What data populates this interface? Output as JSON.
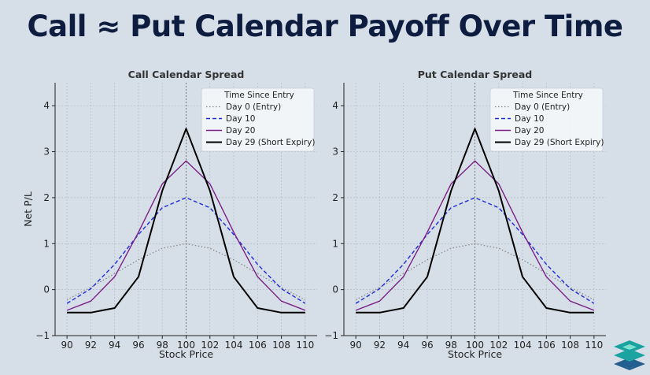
{
  "page": {
    "title": "Call ≈ Put Calendar Payoff Over Time"
  },
  "logo": {
    "icon": "layered-stack-logo-icon",
    "colors": [
      "#1aa3a0",
      "#7fe0d2",
      "#245f8f"
    ]
  },
  "chart_data": [
    {
      "type": "line",
      "title": "Call Calendar Spread",
      "xlabel": "Stock Price",
      "ylabel": "Net P/L",
      "xlim": [
        89,
        111
      ],
      "ylim": [
        -1,
        4.5
      ],
      "xticks": [
        90,
        92,
        94,
        96,
        98,
        100,
        102,
        104,
        106,
        108,
        110
      ],
      "yticks": [
        -1,
        0,
        1,
        2,
        3,
        4
      ],
      "grid": true,
      "vline_x": 100,
      "legend": {
        "title": "Time Since Entry",
        "placement": "top-right"
      },
      "x": [
        90,
        92,
        94,
        96,
        98,
        100,
        102,
        104,
        106,
        108,
        110
      ],
      "series": [
        {
          "name": "Day 0 (Entry)",
          "color": "#888888",
          "style": "dotted",
          "values": [
            -0.22,
            0.05,
            0.35,
            0.65,
            0.9,
            1.0,
            0.9,
            0.65,
            0.35,
            0.05,
            -0.22
          ]
        },
        {
          "name": "Day 10",
          "color": "#1f2bd6",
          "style": "dashed",
          "values": [
            -0.3,
            0.02,
            0.55,
            1.2,
            1.78,
            2.0,
            1.78,
            1.2,
            0.55,
            0.02,
            -0.3
          ]
        },
        {
          "name": "Day 20",
          "color": "#7b1f86",
          "style": "solid",
          "values": [
            -0.45,
            -0.25,
            0.28,
            1.25,
            2.3,
            2.8,
            2.3,
            1.25,
            0.28,
            -0.25,
            -0.45
          ]
        },
        {
          "name": "Day 29 (Short Expiry)",
          "color": "#000000",
          "style": "solid-thick",
          "values": [
            -0.5,
            -0.5,
            -0.4,
            0.28,
            2.15,
            3.5,
            2.15,
            0.28,
            -0.4,
            -0.5,
            -0.5
          ]
        }
      ]
    },
    {
      "type": "line",
      "title": "Put Calendar Spread",
      "xlabel": "Stock Price",
      "ylabel": "",
      "xlim": [
        89,
        111
      ],
      "ylim": [
        -1,
        4.5
      ],
      "xticks": [
        90,
        92,
        94,
        96,
        98,
        100,
        102,
        104,
        106,
        108,
        110
      ],
      "yticks": [
        -1,
        0,
        1,
        2,
        3,
        4
      ],
      "grid": true,
      "vline_x": 100,
      "legend": {
        "title": "Time Since Entry",
        "placement": "top-right"
      },
      "x": [
        90,
        92,
        94,
        96,
        98,
        100,
        102,
        104,
        106,
        108,
        110
      ],
      "series": [
        {
          "name": "Day 0 (Entry)",
          "color": "#888888",
          "style": "dotted",
          "values": [
            -0.22,
            0.05,
            0.35,
            0.65,
            0.9,
            1.0,
            0.9,
            0.65,
            0.35,
            0.05,
            -0.22
          ]
        },
        {
          "name": "Day 10",
          "color": "#1f2bd6",
          "style": "dashed",
          "values": [
            -0.3,
            0.02,
            0.55,
            1.2,
            1.78,
            2.0,
            1.78,
            1.2,
            0.55,
            0.02,
            -0.3
          ]
        },
        {
          "name": "Day 20",
          "color": "#7b1f86",
          "style": "solid",
          "values": [
            -0.45,
            -0.25,
            0.28,
            1.25,
            2.3,
            2.8,
            2.3,
            1.25,
            0.28,
            -0.25,
            -0.45
          ]
        },
        {
          "name": "Day 29 (Short Expiry)",
          "color": "#000000",
          "style": "solid-thick",
          "values": [
            -0.5,
            -0.5,
            -0.4,
            0.28,
            2.15,
            3.5,
            2.15,
            0.28,
            -0.4,
            -0.5,
            -0.5
          ]
        }
      ]
    }
  ]
}
